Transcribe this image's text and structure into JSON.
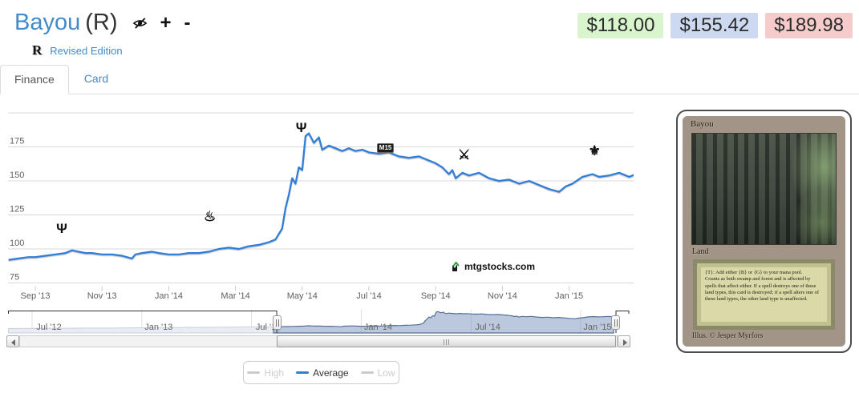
{
  "header": {
    "title": "Bayou",
    "variant": "(R)",
    "set_symbol": "R",
    "set_name": "Revised Edition",
    "add_label": "+",
    "remove_label": "-"
  },
  "prices": {
    "low": "$118.00",
    "average": "$155.42",
    "high": "$189.98",
    "low_bg": "#d8f5cd",
    "average_bg": "#cdd9f0",
    "high_bg": "#f6cbcb"
  },
  "tabs": [
    {
      "label": "Finance",
      "active": true
    },
    {
      "label": "Card",
      "active": false
    }
  ],
  "watermark": {
    "text": "mtgstocks.com",
    "logo_color": "#2e9e3f"
  },
  "legend": [
    {
      "label": "High",
      "enabled": false
    },
    {
      "label": "Average",
      "enabled": true
    },
    {
      "label": "Low",
      "enabled": false
    }
  ],
  "legend_colors": {
    "enabled_line": "#2f7ed8",
    "disabled_line": "#cccccc",
    "enabled_text": "#333333",
    "disabled_text": "#cccccc"
  },
  "chart_data": {
    "type": "line",
    "title": "",
    "xlabel": "",
    "ylabel": "",
    "grid": true,
    "line_color": "#2f7ed8",
    "grid_color": "#d8d8d8",
    "axis_label_color": "#606060",
    "ylim": [
      75,
      200
    ],
    "yticks_labeled": [
      75,
      100,
      125,
      150,
      175
    ],
    "ymax_gridline": 200,
    "x_axis_labels": [
      {
        "label": "Sep '13",
        "month": 0
      },
      {
        "label": "Nov '13",
        "month": 2
      },
      {
        "label": "Jan '14",
        "month": 4
      },
      {
        "label": "Mar '14",
        "month": 6
      },
      {
        "label": "May '14",
        "month": 8
      },
      {
        "label": "Jul '14",
        "month": 10
      },
      {
        "label": "Sep '14",
        "month": 12
      },
      {
        "label": "Nov '14",
        "month": 14
      },
      {
        "label": "Jan '15",
        "month": 16
      }
    ],
    "series": [
      {
        "name": "Average",
        "color": "#2f7ed8",
        "points": [
          [
            -0.8,
            92
          ],
          [
            -0.5,
            93
          ],
          [
            -0.2,
            94
          ],
          [
            0,
            94
          ],
          [
            0.3,
            95
          ],
          [
            0.6,
            96
          ],
          [
            0.9,
            97
          ],
          [
            1.1,
            99
          ],
          [
            1.3,
            98
          ],
          [
            1.5,
            97
          ],
          [
            1.7,
            97
          ],
          [
            2.0,
            96
          ],
          [
            2.3,
            96
          ],
          [
            2.6,
            95
          ],
          [
            2.9,
            93
          ],
          [
            3.0,
            96
          ],
          [
            3.2,
            97
          ],
          [
            3.5,
            98
          ],
          [
            3.7,
            97
          ],
          [
            4.0,
            96
          ],
          [
            4.3,
            96
          ],
          [
            4.6,
            97
          ],
          [
            4.9,
            97
          ],
          [
            5.2,
            98
          ],
          [
            5.5,
            100
          ],
          [
            5.8,
            101
          ],
          [
            6.1,
            100
          ],
          [
            6.4,
            102
          ],
          [
            6.7,
            103
          ],
          [
            7.0,
            105
          ],
          [
            7.2,
            107
          ],
          [
            7.4,
            115
          ],
          [
            7.5,
            130
          ],
          [
            7.6,
            140
          ],
          [
            7.7,
            152
          ],
          [
            7.8,
            148
          ],
          [
            7.9,
            160
          ],
          [
            8.0,
            158
          ],
          [
            8.1,
            183
          ],
          [
            8.2,
            185
          ],
          [
            8.35,
            178
          ],
          [
            8.5,
            182
          ],
          [
            8.6,
            173
          ],
          [
            8.8,
            176
          ],
          [
            9.0,
            174
          ],
          [
            9.2,
            172
          ],
          [
            9.4,
            174
          ],
          [
            9.6,
            172
          ],
          [
            9.8,
            173
          ],
          [
            10.0,
            171
          ],
          [
            10.3,
            170
          ],
          [
            10.6,
            171
          ],
          [
            10.9,
            168
          ],
          [
            11.2,
            167
          ],
          [
            11.5,
            168
          ],
          [
            11.8,
            165
          ],
          [
            12.0,
            163
          ],
          [
            12.2,
            160
          ],
          [
            12.4,
            155
          ],
          [
            12.5,
            158
          ],
          [
            12.6,
            152
          ],
          [
            12.8,
            156
          ],
          [
            13.0,
            154
          ],
          [
            13.3,
            156
          ],
          [
            13.6,
            152
          ],
          [
            13.9,
            150
          ],
          [
            14.2,
            151
          ],
          [
            14.5,
            148
          ],
          [
            14.8,
            150
          ],
          [
            15.1,
            147
          ],
          [
            15.4,
            144
          ],
          [
            15.7,
            142
          ],
          [
            15.9,
            146
          ],
          [
            16.1,
            148
          ],
          [
            16.4,
            153
          ],
          [
            16.7,
            155
          ],
          [
            16.9,
            153
          ],
          [
            17.2,
            154
          ],
          [
            17.5,
            156
          ],
          [
            17.8,
            153
          ],
          [
            18.0,
            155
          ],
          [
            18.1,
            154
          ]
        ]
      }
    ],
    "flags": [
      {
        "name": "set-symbol-1",
        "glyph": "Ψ",
        "month": 0.82,
        "value": 114,
        "style": "glyph"
      },
      {
        "name": "set-symbol-2",
        "glyph": "♨",
        "month": 5.24,
        "value": 123,
        "style": "glyph"
      },
      {
        "name": "set-symbol-3",
        "glyph": "Ψ",
        "month": 8.0,
        "value": 188,
        "style": "glyph"
      },
      {
        "name": "set-symbol-m15",
        "glyph": "M15",
        "month": 10.5,
        "value": 174,
        "style": "badge"
      },
      {
        "name": "set-symbol-5",
        "glyph": "⚔",
        "month": 12.86,
        "value": 168,
        "style": "glyph"
      },
      {
        "name": "set-symbol-6",
        "glyph": "⚜",
        "month": 16.77,
        "value": 171,
        "style": "glyph"
      }
    ],
    "navigator": {
      "pre_points": [
        [
          -15.3,
          82
        ],
        [
          -14.5,
          83
        ],
        [
          -14,
          83
        ],
        [
          -13,
          84
        ],
        [
          -12,
          84
        ],
        [
          -11,
          85
        ],
        [
          -10,
          85
        ],
        [
          -9,
          86
        ],
        [
          -8,
          87
        ],
        [
          -7,
          88
        ],
        [
          -6.5,
          89
        ],
        [
          -6,
          88
        ],
        [
          -5.5,
          90
        ],
        [
          -5,
          89
        ],
        [
          -4.5,
          90
        ],
        [
          -4,
          90
        ],
        [
          -3.5,
          91
        ],
        [
          -3,
          91
        ],
        [
          -2.5,
          92
        ],
        [
          -2,
          92
        ],
        [
          -1.5,
          92
        ],
        [
          -1,
          92
        ]
      ],
      "selection_start_month": -0.62,
      "selection_end_month": 17.93,
      "labels": [
        {
          "label": "Jul '12",
          "month": -14
        },
        {
          "label": "Jan '13",
          "month": -8
        },
        {
          "label": "Jul '13",
          "month": -2
        },
        {
          "label": "Jan '14",
          "month": 4
        },
        {
          "label": "Jul '14",
          "month": 10
        },
        {
          "label": "Jan '15",
          "month": 16
        }
      ],
      "selected_fill": "rgba(120,146,187,0.5)",
      "selected_line": "#567099",
      "unselected_fill": "#e9edf3",
      "unselected_line": "#c8d0dd"
    }
  },
  "card_image": {
    "name": "Bayou",
    "type_line": "Land",
    "rules_line1": "{T}: Add either {B} or {G} to your mana pool.",
    "rules_body": "Counts as both swamp and forest and is affected by spells that affect either. If a spell destroys one of these land types, this card is destroyed; if a spell alters one of these land types, the other land type is unaffected.",
    "artist": "Illus. © Jesper Myrfors"
  }
}
